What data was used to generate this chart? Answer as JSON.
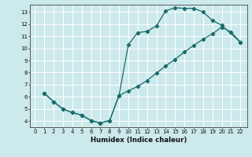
{
  "xlabel": "Humidex (Indice chaleur)",
  "bg_color": "#cce9eb",
  "grid_color": "#ffffff",
  "line_color": "#1a6b6b",
  "xlim": [
    -0.5,
    22.7
  ],
  "ylim": [
    3.5,
    13.6
  ],
  "xticks": [
    0,
    1,
    2,
    3,
    4,
    5,
    6,
    7,
    8,
    9,
    10,
    11,
    12,
    13,
    14,
    15,
    16,
    17,
    18,
    19,
    20,
    21,
    22
  ],
  "yticks": [
    4,
    5,
    6,
    7,
    8,
    9,
    10,
    11,
    12,
    13
  ],
  "curve_upper_x": [
    1,
    2,
    3,
    4,
    5,
    6,
    7,
    8,
    9,
    10,
    11,
    12,
    13,
    14,
    15,
    16,
    17,
    18,
    19,
    20,
    22
  ],
  "curve_upper_y": [
    6.3,
    5.6,
    5.0,
    4.7,
    4.5,
    4.05,
    3.85,
    4.05,
    6.1,
    10.3,
    11.3,
    11.4,
    11.85,
    13.1,
    13.35,
    13.3,
    13.3,
    13.0,
    12.3,
    11.9,
    10.5
  ],
  "curve_lower_x": [
    1,
    2,
    3,
    4,
    5,
    6,
    7,
    8,
    9,
    10,
    11,
    12,
    13,
    14,
    15,
    16,
    17,
    18,
    19,
    20,
    21,
    22
  ],
  "curve_lower_y": [
    6.3,
    5.6,
    5.0,
    4.7,
    4.5,
    4.05,
    3.85,
    4.05,
    6.1,
    6.5,
    6.85,
    7.35,
    7.95,
    8.55,
    9.1,
    9.7,
    10.25,
    10.75,
    11.2,
    11.75,
    11.35,
    10.5
  ],
  "marker_size": 2.2,
  "linewidth": 0.9,
  "tick_fontsize": 5.0,
  "xlabel_fontsize": 6.2
}
